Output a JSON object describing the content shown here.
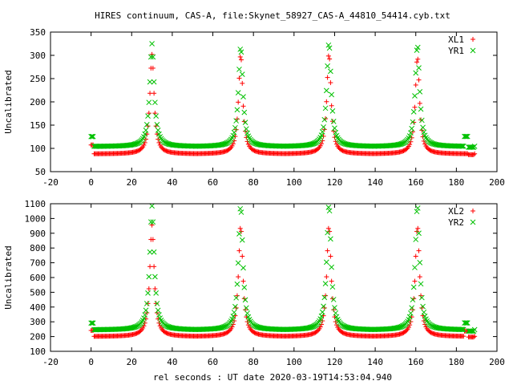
{
  "title": "HIRES continuum, CAS-A, file:Skynet_58927_CAS-A_44810_54414.cyb.txt",
  "xlabel": "rel seconds : UT date 2020-03-19T14:53:04.940",
  "colors": {
    "red": "#ff0000",
    "green": "#00c000"
  },
  "chart_data": [
    {
      "type": "scatter",
      "ylabel": "Uncalibrated",
      "xlim": [
        -20,
        200
      ],
      "ylim": [
        50,
        350
      ],
      "xticks": [
        -20,
        0,
        20,
        40,
        60,
        80,
        100,
        120,
        140,
        160,
        180,
        200
      ],
      "yticks": [
        50,
        100,
        150,
        200,
        250,
        300,
        350
      ],
      "legend_position": "top-right",
      "series": [
        {
          "name": "XL1",
          "marker": "+",
          "color": "#ff0000",
          "segments": [
            [
              0,
              1.2,
              107,
              107
            ],
            [
              1.2,
              186,
              88,
              88
            ],
            [
              186,
              189,
              86,
              86
            ]
          ],
          "baseline": 88,
          "peaks": [
            [
              30,
              302
            ],
            [
              73.7,
              302
            ],
            [
              117.2,
              304
            ],
            [
              160.8,
              297
            ]
          ],
          "peak_width": 1.25
        },
        {
          "name": "YR1",
          "marker": "×",
          "color": "#00c000",
          "segments": [
            [
              0,
              1.2,
              125,
              125
            ],
            [
              1.2,
              184,
              104,
              104
            ],
            [
              184,
              186,
              125,
              125
            ],
            [
              186,
              189,
              102,
              102
            ]
          ],
          "baseline": 104,
          "peaks": [
            [
              30,
              325
            ],
            [
              73.7,
              318
            ],
            [
              117.2,
              327
            ],
            [
              160.8,
              322
            ]
          ],
          "peak_width": 1.3
        }
      ]
    },
    {
      "type": "scatter",
      "ylabel": "Uncalibrated",
      "xlim": [
        -20,
        200
      ],
      "ylim": [
        100,
        1100
      ],
      "xticks": [
        -20,
        0,
        20,
        40,
        60,
        80,
        100,
        120,
        140,
        160,
        180,
        200
      ],
      "yticks": [
        100,
        200,
        300,
        400,
        500,
        600,
        700,
        800,
        900,
        1000,
        1100
      ],
      "legend_position": "top-right",
      "series": [
        {
          "name": "XL2",
          "marker": "+",
          "color": "#ff0000",
          "segments": [
            [
              0,
              1.2,
              240,
              240
            ],
            [
              1.2,
              184,
              200,
              200
            ],
            [
              184,
              186,
              235,
              235
            ],
            [
              186,
              189,
              195,
              195
            ]
          ],
          "baseline": 200,
          "peaks": [
            [
              30,
              955
            ],
            [
              73.7,
              950
            ],
            [
              117.2,
              950
            ],
            [
              160.8,
              950
            ]
          ],
          "peak_width": 1.3
        },
        {
          "name": "YR2",
          "marker": "×",
          "color": "#00c000",
          "segments": [
            [
              0,
              1.2,
              290,
              290
            ],
            [
              1.2,
              184,
              245,
              245
            ],
            [
              184,
              186,
              290,
              290
            ],
            [
              186,
              189,
              235,
              235
            ]
          ],
          "baseline": 245,
          "peaks": [
            [
              30,
              1085
            ],
            [
              73.7,
              1085
            ],
            [
              117.2,
              1095
            ],
            [
              160.8,
              1090
            ]
          ],
          "peak_width": 1.3
        }
      ]
    }
  ]
}
